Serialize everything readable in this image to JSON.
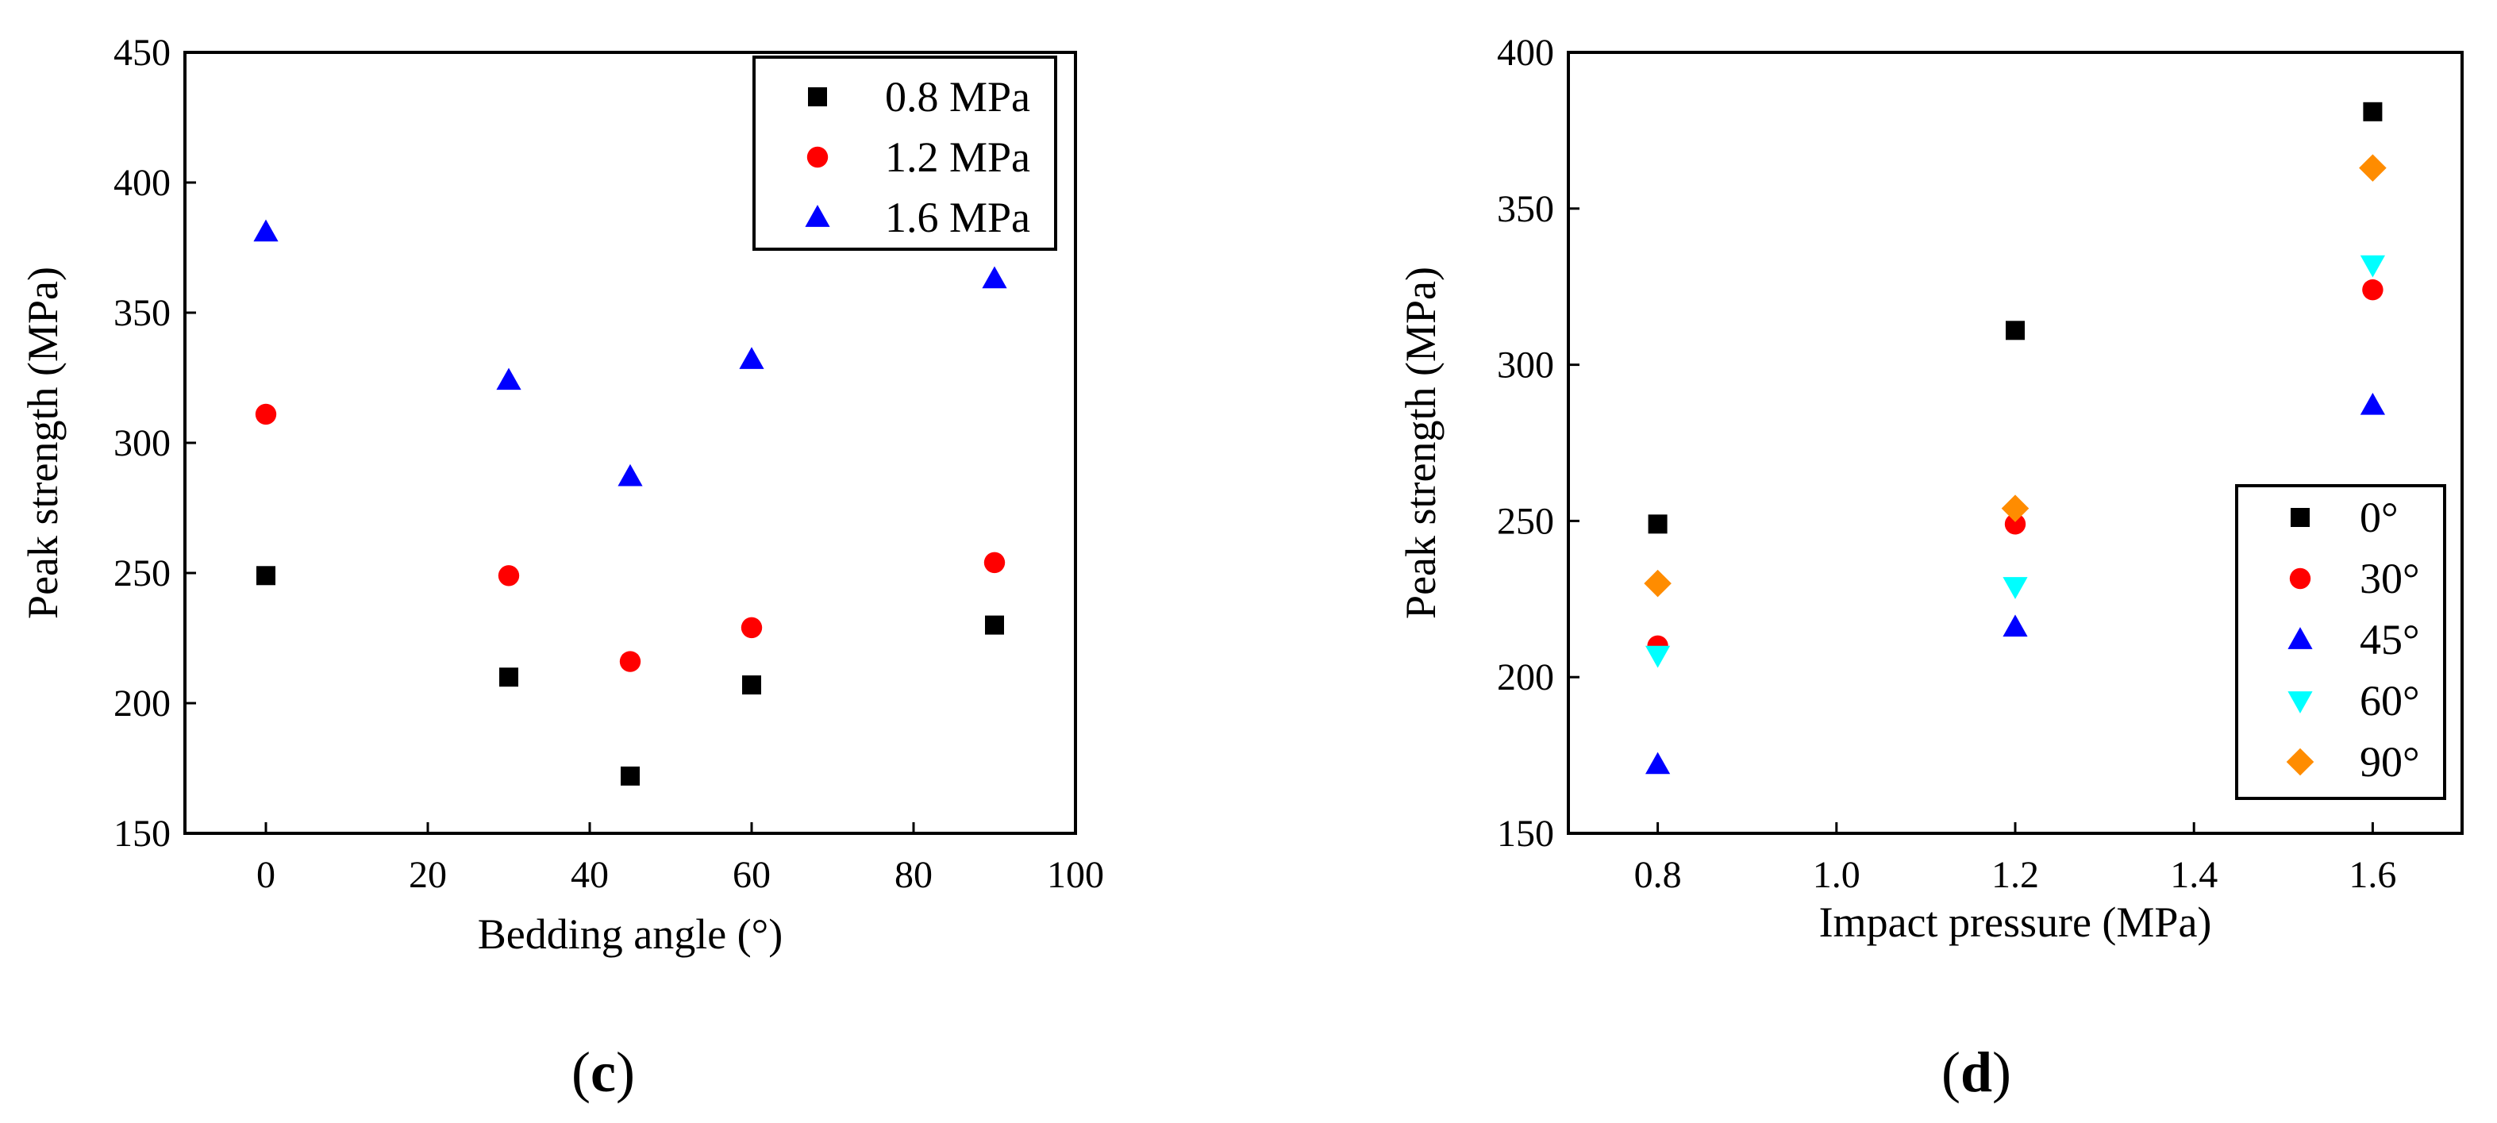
{
  "chart_data": [
    {
      "type": "scatter",
      "panel_label": "c",
      "xlabel": "Bedding angle (°)",
      "ylabel": "Peak strength (MPa)",
      "xlim": [
        -10,
        100
      ],
      "ylim": [
        150,
        450
      ],
      "xticks": [
        0,
        20,
        40,
        60,
        80,
        100
      ],
      "yticks": [
        150,
        200,
        250,
        300,
        350,
        400,
        450
      ],
      "grid": false,
      "legend_position": "top-right",
      "series": [
        {
          "name": "0.8 MPa",
          "marker": "square",
          "color": "#000000",
          "x": [
            0,
            30,
            45,
            60,
            90
          ],
          "y": [
            249,
            210,
            172,
            207,
            230
          ]
        },
        {
          "name": "1.2 MPa",
          "marker": "circle",
          "color": "#ff0000",
          "x": [
            0,
            30,
            45,
            60,
            90
          ],
          "y": [
            311,
            249,
            216,
            229,
            254
          ]
        },
        {
          "name": "1.6 MPa",
          "marker": "triangle-up",
          "color": "#0000ff",
          "x": [
            0,
            30,
            45,
            60,
            90
          ],
          "y": [
            381,
            324,
            287,
            332,
            363
          ]
        }
      ]
    },
    {
      "type": "scatter",
      "panel_label": "d",
      "xlabel": "Impact pressure (MPa)",
      "ylabel": "Peak strength (MPa)",
      "xlim": [
        0.7,
        1.7
      ],
      "ylim": [
        150,
        400
      ],
      "xticks": [
        "0.8",
        "1.0",
        "1.2",
        "1.4",
        "1.6"
      ],
      "yticks": [
        150,
        200,
        250,
        300,
        350,
        400
      ],
      "grid": false,
      "legend_position": "bottom-right",
      "series": [
        {
          "name": "0°",
          "marker": "square",
          "color": "#000000",
          "x": [
            0.8,
            1.2,
            1.6
          ],
          "y": [
            249,
            311,
            381
          ]
        },
        {
          "name": "30°",
          "marker": "circle",
          "color": "#ff0000",
          "x": [
            0.8,
            1.2,
            1.6
          ],
          "y": [
            210,
            249,
            324
          ]
        },
        {
          "name": "45°",
          "marker": "triangle-up",
          "color": "#0000ff",
          "x": [
            0.8,
            1.2,
            1.6
          ],
          "y": [
            172,
            216,
            287
          ]
        },
        {
          "name": "60°",
          "marker": "triangle-down",
          "color": "#00ffff",
          "x": [
            0.8,
            1.2,
            1.6
          ],
          "y": [
            207,
            229,
            332
          ]
        },
        {
          "name": "90°",
          "marker": "diamond",
          "color": "#ff8c00",
          "x": [
            0.8,
            1.2,
            1.6
          ],
          "y": [
            230,
            254,
            363
          ]
        }
      ]
    }
  ]
}
